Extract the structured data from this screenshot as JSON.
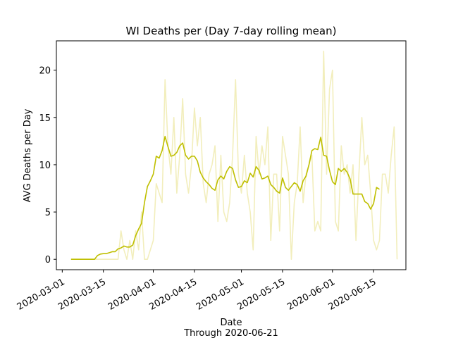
{
  "chart_data": {
    "type": "line",
    "title": "WI Deaths per (Day 7-day rolling mean)",
    "xlabel": "Date",
    "xlabel_sub": "Through 2020-06-21",
    "ylabel": "AVG Deaths per Day",
    "x_ticks": [
      "2020-03-01",
      "2020-03-15",
      "2020-04-01",
      "2020-04-15",
      "2020-05-01",
      "2020-05-15",
      "2020-06-01",
      "2020-06-15"
    ],
    "y_ticks": [
      0,
      5,
      10,
      15,
      20
    ],
    "xlim": [
      "2020-02-28",
      "2020-06-26"
    ],
    "ylim": [
      -1.1,
      23.1
    ],
    "grid": false,
    "series": [
      {
        "name": "",
        "color": "#f2eebc",
        "values": [
          [
            "2020-03-04",
            0
          ],
          [
            "2020-03-05",
            0
          ],
          [
            "2020-03-06",
            0
          ],
          [
            "2020-03-07",
            0
          ],
          [
            "2020-03-08",
            0
          ],
          [
            "2020-03-09",
            0
          ],
          [
            "2020-03-10",
            0
          ],
          [
            "2020-03-11",
            0
          ],
          [
            "2020-03-12",
            0
          ],
          [
            "2020-03-13",
            0
          ],
          [
            "2020-03-14",
            0
          ],
          [
            "2020-03-15",
            0
          ],
          [
            "2020-03-16",
            0
          ],
          [
            "2020-03-17",
            0
          ],
          [
            "2020-03-18",
            0
          ],
          [
            "2020-03-19",
            0
          ],
          [
            "2020-03-20",
            0
          ],
          [
            "2020-03-21",
            3
          ],
          [
            "2020-03-22",
            1
          ],
          [
            "2020-03-23",
            0
          ],
          [
            "2020-03-24",
            2
          ],
          [
            "2020-03-25",
            0
          ],
          [
            "2020-03-26",
            3
          ],
          [
            "2020-03-27",
            1
          ],
          [
            "2020-03-28",
            5
          ],
          [
            "2020-03-29",
            0
          ],
          [
            "2020-03-30",
            0
          ],
          [
            "2020-03-31",
            1
          ],
          [
            "2020-04-01",
            2
          ],
          [
            "2020-04-02",
            8
          ],
          [
            "2020-04-03",
            7
          ],
          [
            "2020-04-04",
            6
          ],
          [
            "2020-04-05",
            19
          ],
          [
            "2020-04-06",
            12
          ],
          [
            "2020-04-07",
            9
          ],
          [
            "2020-04-08",
            15
          ],
          [
            "2020-04-09",
            7
          ],
          [
            "2020-04-10",
            11
          ],
          [
            "2020-04-11",
            17
          ],
          [
            "2020-04-12",
            9
          ],
          [
            "2020-04-13",
            7
          ],
          [
            "2020-04-14",
            10
          ],
          [
            "2020-04-15",
            16
          ],
          [
            "2020-04-16",
            12
          ],
          [
            "2020-04-17",
            15
          ],
          [
            "2020-04-18",
            8
          ],
          [
            "2020-04-19",
            6
          ],
          [
            "2020-04-20",
            9
          ],
          [
            "2020-04-21",
            10
          ],
          [
            "2020-04-22",
            12
          ],
          [
            "2020-04-23",
            4
          ],
          [
            "2020-04-24",
            11
          ],
          [
            "2020-04-25",
            5
          ],
          [
            "2020-04-26",
            4
          ],
          [
            "2020-04-27",
            6
          ],
          [
            "2020-04-28",
            11
          ],
          [
            "2020-04-29",
            19
          ],
          [
            "2020-04-30",
            9
          ],
          [
            "2020-05-01",
            7
          ],
          [
            "2020-05-02",
            11
          ],
          [
            "2020-05-03",
            7
          ],
          [
            "2020-05-04",
            5
          ],
          [
            "2020-05-05",
            1
          ],
          [
            "2020-05-06",
            13
          ],
          [
            "2020-05-07",
            9
          ],
          [
            "2020-05-08",
            12
          ],
          [
            "2020-05-09",
            10
          ],
          [
            "2020-05-10",
            14
          ],
          [
            "2020-05-11",
            2
          ],
          [
            "2020-05-12",
            9
          ],
          [
            "2020-05-13",
            9
          ],
          [
            "2020-05-14",
            3
          ],
          [
            "2020-05-15",
            13
          ],
          [
            "2020-05-16",
            11
          ],
          [
            "2020-05-17",
            9
          ],
          [
            "2020-05-18",
            0
          ],
          [
            "2020-05-19",
            6
          ],
          [
            "2020-05-20",
            8
          ],
          [
            "2020-05-21",
            14
          ],
          [
            "2020-05-22",
            6
          ],
          [
            "2020-05-23",
            9
          ],
          [
            "2020-05-24",
            10
          ],
          [
            "2020-05-25",
            11
          ],
          [
            "2020-05-26",
            3
          ],
          [
            "2020-05-27",
            4
          ],
          [
            "2020-05-28",
            3
          ],
          [
            "2020-05-29",
            22
          ],
          [
            "2020-05-30",
            9
          ],
          [
            "2020-05-31",
            18
          ],
          [
            "2020-06-01",
            20
          ],
          [
            "2020-06-02",
            4
          ],
          [
            "2020-06-03",
            3
          ],
          [
            "2020-06-04",
            12
          ],
          [
            "2020-06-05",
            9
          ],
          [
            "2020-06-06",
            10
          ],
          [
            "2020-06-07",
            7
          ],
          [
            "2020-06-08",
            10
          ],
          [
            "2020-06-09",
            2
          ],
          [
            "2020-06-10",
            9
          ],
          [
            "2020-06-11",
            15
          ],
          [
            "2020-06-12",
            10
          ],
          [
            "2020-06-13",
            11
          ],
          [
            "2020-06-14",
            7
          ],
          [
            "2020-06-15",
            2
          ],
          [
            "2020-06-16",
            1
          ],
          [
            "2020-06-17",
            2
          ],
          [
            "2020-06-18",
            9
          ],
          [
            "2020-06-19",
            9
          ],
          [
            "2020-06-20",
            7
          ],
          [
            "2020-06-21",
            11
          ],
          [
            "2020-06-22",
            14
          ],
          [
            "2020-06-23",
            0
          ]
        ]
      },
      {
        "name": "",
        "color": "#bfbf00",
        "values": [
          [
            "2020-03-04",
            0
          ],
          [
            "2020-03-05",
            0
          ],
          [
            "2020-03-06",
            0
          ],
          [
            "2020-03-07",
            0
          ],
          [
            "2020-03-08",
            0
          ],
          [
            "2020-03-09",
            0
          ],
          [
            "2020-03-10",
            0
          ],
          [
            "2020-03-11",
            0
          ],
          [
            "2020-03-12",
            0
          ],
          [
            "2020-03-13",
            0.4
          ],
          [
            "2020-03-14",
            0.55
          ],
          [
            "2020-03-15",
            0.6
          ],
          [
            "2020-03-16",
            0.6
          ],
          [
            "2020-03-17",
            0.7
          ],
          [
            "2020-03-18",
            0.8
          ],
          [
            "2020-03-19",
            0.8
          ],
          [
            "2020-03-20",
            1.1
          ],
          [
            "2020-03-21",
            1.2
          ],
          [
            "2020-03-22",
            1.4
          ],
          [
            "2020-03-23",
            1.3
          ],
          [
            "2020-03-24",
            1.3
          ],
          [
            "2020-03-25",
            1.5
          ],
          [
            "2020-03-26",
            2.5
          ],
          [
            "2020-03-27",
            3.2
          ],
          [
            "2020-03-28",
            3.8
          ],
          [
            "2020-03-29",
            6
          ],
          [
            "2020-03-30",
            7.7
          ],
          [
            "2020-03-31",
            8.3
          ],
          [
            "2020-04-01",
            9
          ],
          [
            "2020-04-02",
            10.9
          ],
          [
            "2020-04-03",
            10.7
          ],
          [
            "2020-04-04",
            11.5
          ],
          [
            "2020-04-05",
            13
          ],
          [
            "2020-04-06",
            11.9
          ],
          [
            "2020-04-07",
            10.9
          ],
          [
            "2020-04-08",
            11
          ],
          [
            "2020-04-09",
            11.3
          ],
          [
            "2020-04-10",
            12
          ],
          [
            "2020-04-11",
            12.3
          ],
          [
            "2020-04-12",
            11
          ],
          [
            "2020-04-13",
            10.6
          ],
          [
            "2020-04-14",
            10.9
          ],
          [
            "2020-04-15",
            10.9
          ],
          [
            "2020-04-16",
            10.4
          ],
          [
            "2020-04-17",
            9.2
          ],
          [
            "2020-04-18",
            8.6
          ],
          [
            "2020-04-19",
            8.2
          ],
          [
            "2020-04-20",
            7.9
          ],
          [
            "2020-04-21",
            7.5
          ],
          [
            "2020-04-22",
            7.3
          ],
          [
            "2020-04-23",
            8.4
          ],
          [
            "2020-04-24",
            8.8
          ],
          [
            "2020-04-25",
            8.5
          ],
          [
            "2020-04-26",
            9.3
          ],
          [
            "2020-04-27",
            9.8
          ],
          [
            "2020-04-28",
            9.6
          ],
          [
            "2020-04-29",
            8.4
          ],
          [
            "2020-04-30",
            7.6
          ],
          [
            "2020-05-01",
            7.7
          ],
          [
            "2020-05-02",
            8.3
          ],
          [
            "2020-05-03",
            8.1
          ],
          [
            "2020-05-04",
            9.1
          ],
          [
            "2020-05-05",
            8.7
          ],
          [
            "2020-05-06",
            9.8
          ],
          [
            "2020-05-07",
            9.4
          ],
          [
            "2020-05-08",
            8.5
          ],
          [
            "2020-05-09",
            8.6
          ],
          [
            "2020-05-10",
            8.8
          ],
          [
            "2020-05-11",
            7.9
          ],
          [
            "2020-05-12",
            7.6
          ],
          [
            "2020-05-13",
            7.2
          ],
          [
            "2020-05-14",
            7
          ],
          [
            "2020-05-15",
            8.6
          ],
          [
            "2020-05-16",
            7.6
          ],
          [
            "2020-05-17",
            7.3
          ],
          [
            "2020-05-18",
            7.7
          ],
          [
            "2020-05-19",
            8.1
          ],
          [
            "2020-05-20",
            7.9
          ],
          [
            "2020-05-21",
            7.2
          ],
          [
            "2020-05-22",
            8.3
          ],
          [
            "2020-05-23",
            8.8
          ],
          [
            "2020-05-24",
            10
          ],
          [
            "2020-05-25",
            11.5
          ],
          [
            "2020-05-26",
            11.7
          ],
          [
            "2020-05-27",
            11.6
          ],
          [
            "2020-05-28",
            12.9
          ],
          [
            "2020-05-29",
            11
          ],
          [
            "2020-05-30",
            10.9
          ],
          [
            "2020-05-31",
            9.4
          ],
          [
            "2020-06-01",
            8.2
          ],
          [
            "2020-06-02",
            7.9
          ],
          [
            "2020-06-03",
            9.6
          ],
          [
            "2020-06-04",
            9.3
          ],
          [
            "2020-06-05",
            9.6
          ],
          [
            "2020-06-06",
            9.2
          ],
          [
            "2020-06-07",
            8.5
          ],
          [
            "2020-06-08",
            6.9
          ],
          [
            "2020-06-09",
            6.9
          ],
          [
            "2020-06-10",
            6.9
          ],
          [
            "2020-06-11",
            6.9
          ],
          [
            "2020-06-12",
            6.1
          ],
          [
            "2020-06-13",
            5.9
          ],
          [
            "2020-06-14",
            5.3
          ],
          [
            "2020-06-15",
            5.9
          ],
          [
            "2020-06-16",
            7.6
          ],
          [
            "2020-06-17",
            7.4
          ]
        ]
      }
    ]
  }
}
